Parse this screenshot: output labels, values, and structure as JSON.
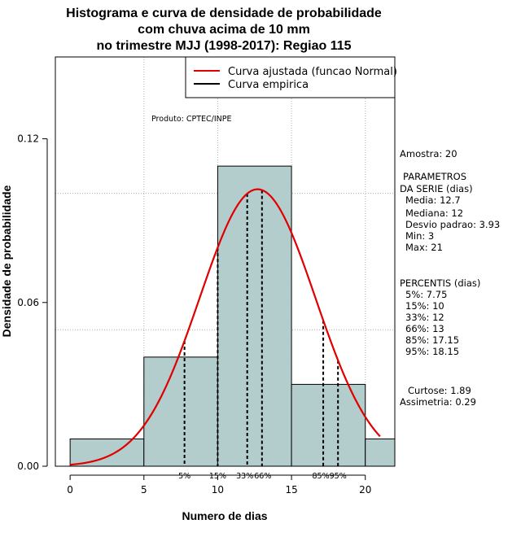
{
  "chart_data": {
    "type": "bar",
    "title": [
      "Histograma e curva de densidade de probabilidade",
      "com chuva acima de 10 mm",
      "no trimestre MJJ (1998-2017): Regiao 115"
    ],
    "xlabel": "Numero de dias",
    "ylabel": "Densidade de probabilidade",
    "xlim": [
      -1,
      22
    ],
    "ylim": [
      0,
      0.15
    ],
    "xticks": [
      0,
      5,
      10,
      15,
      20
    ],
    "yticks": [
      0.0,
      0.06,
      0.12
    ],
    "ytick_labels": [
      "0.00",
      "0.06",
      "0.12"
    ],
    "bins": [
      {
        "from": 0,
        "to": 5,
        "density": 0.01
      },
      {
        "from": 5,
        "to": 10,
        "density": 0.04
      },
      {
        "from": 10,
        "to": 15,
        "density": 0.11
      },
      {
        "from": 15,
        "to": 20,
        "density": 0.03
      },
      {
        "from": 20,
        "to": 22,
        "density": 0.01
      }
    ],
    "bar_color": "#b3cccc",
    "normal_curve": {
      "mean": 12.7,
      "sd": 3.93,
      "x_range": [
        0,
        21
      ],
      "color": "#e00000"
    },
    "legend": [
      {
        "label": "Curva ajustada (funcao Normal)",
        "color": "#e00000"
      },
      {
        "label": "Curva empirica",
        "color": "#000000"
      }
    ],
    "legend_position": "top-right",
    "percentiles": [
      {
        "label": "5%",
        "value": 7.75
      },
      {
        "label": "15%",
        "value": 10
      },
      {
        "label": "33%",
        "value": 12
      },
      {
        "label": "66%",
        "value": 13
      },
      {
        "label": "85%",
        "value": 17.15
      },
      {
        "label": "95%",
        "value": 18.15
      }
    ],
    "annotation": "Produto: CPTEC/INPE",
    "grid": true
  },
  "stats_panel": [
    "Amostra: 20",
    "PARAMETROS",
    "DA SERIE (dias)",
    "Media: 12.7",
    "Mediana: 12",
    "Desvio padrao: 3.93",
    "Min: 3",
    "Max: 21",
    "PERCENTIS (dias)",
    "5%: 7.75",
    "15%: 10",
    "33%: 12",
    "66%: 13",
    "85%: 17.15",
    "95%: 18.15",
    "Curtose: 1.89",
    "Assimetria: 0.29"
  ]
}
